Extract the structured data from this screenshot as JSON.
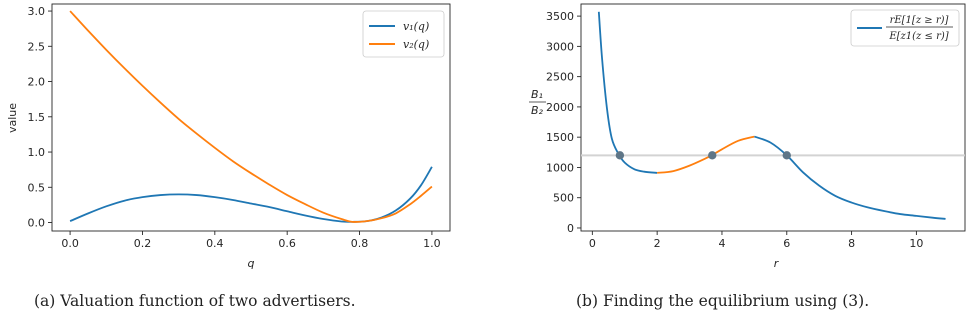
{
  "chart_data": [
    {
      "type": "line",
      "xlabel": "q",
      "ylabel": "value",
      "xlim": [
        -0.05,
        1.05
      ],
      "ylim": [
        -0.12,
        3.1
      ],
      "xticks": [
        "0.0",
        "0.2",
        "0.4",
        "0.6",
        "0.8",
        "1.0"
      ],
      "yticks": [
        "0.0",
        "0.5",
        "1.0",
        "1.5",
        "2.0",
        "2.5",
        "3.0"
      ],
      "legend_position": "top-right",
      "grid": false,
      "series": [
        {
          "name": "v₁(q)",
          "color": "#1f77b4",
          "x": [
            0.0,
            0.05,
            0.1,
            0.15,
            0.2,
            0.25,
            0.3,
            0.35,
            0.4,
            0.45,
            0.5,
            0.55,
            0.6,
            0.65,
            0.7,
            0.75,
            0.78,
            0.82,
            0.86,
            0.9,
            0.94,
            0.97,
            1.0
          ],
          "y": [
            0.02,
            0.13,
            0.23,
            0.31,
            0.36,
            0.39,
            0.4,
            0.39,
            0.36,
            0.32,
            0.27,
            0.22,
            0.16,
            0.1,
            0.05,
            0.015,
            0.01,
            0.02,
            0.07,
            0.17,
            0.34,
            0.53,
            0.79
          ]
        },
        {
          "name": "v₂(q)",
          "color": "#ff7f0e",
          "x": [
            0.0,
            0.05,
            0.1,
            0.15,
            0.2,
            0.25,
            0.3,
            0.35,
            0.4,
            0.45,
            0.5,
            0.55,
            0.6,
            0.65,
            0.7,
            0.75,
            0.78,
            0.82,
            0.86,
            0.9,
            0.94,
            0.97,
            1.0
          ],
          "y": [
            3.0,
            2.72,
            2.45,
            2.19,
            1.94,
            1.7,
            1.47,
            1.26,
            1.06,
            0.87,
            0.7,
            0.54,
            0.39,
            0.26,
            0.14,
            0.05,
            0.01,
            0.02,
            0.06,
            0.13,
            0.26,
            0.38,
            0.51
          ]
        }
      ]
    },
    {
      "type": "line",
      "xlabel": "r",
      "ylabel_num": "B₁",
      "ylabel_den": "B₂",
      "xlim": [
        -0.35,
        11.5
      ],
      "ylim": [
        -50,
        3700
      ],
      "xticks": [
        0,
        2,
        4,
        6,
        8,
        10
      ],
      "yticks": [
        0,
        500,
        1000,
        1500,
        2000,
        2500,
        3000,
        3500
      ],
      "legend_position": "top-right",
      "grid": false,
      "hline": {
        "y": 1200,
        "color": "#d3d3d3"
      },
      "series": [
        {
          "name_num": "rE[1[z ≥ r)]",
          "name_den": "E[z1(z ≤ r)]",
          "color": "#1f77b4",
          "x": [
            0.2,
            0.3,
            0.45,
            0.6,
            0.8,
            1.0,
            1.3,
            1.6,
            2.0
          ],
          "y": [
            3570,
            2800,
            1980,
            1480,
            1230,
            1080,
            970,
            930,
            910
          ]
        },
        {
          "name": "",
          "color": "#ff7f0e",
          "x": [
            2.0,
            2.5,
            3.0,
            3.5,
            3.7,
            4.0,
            4.5,
            5.0
          ],
          "y": [
            910,
            940,
            1030,
            1150,
            1205,
            1300,
            1440,
            1510
          ]
        },
        {
          "name": "",
          "color": "#1f77b4",
          "x": [
            5.0,
            5.5,
            6.0,
            6.5,
            7.0,
            7.5,
            8.0,
            8.5,
            9.0,
            9.5,
            10.0,
            10.5,
            10.9
          ],
          "y": [
            1510,
            1410,
            1200,
            920,
            700,
            530,
            420,
            340,
            280,
            230,
            200,
            170,
            150
          ]
        }
      ],
      "points": {
        "color": "#5f7687",
        "x": [
          0.85,
          3.7,
          6.0
        ],
        "y": [
          1200,
          1200,
          1200
        ]
      }
    }
  ],
  "captions": {
    "left": "(a) Valuation function of two advertisers.",
    "right": "(b) Finding the equilibrium using (3)."
  }
}
